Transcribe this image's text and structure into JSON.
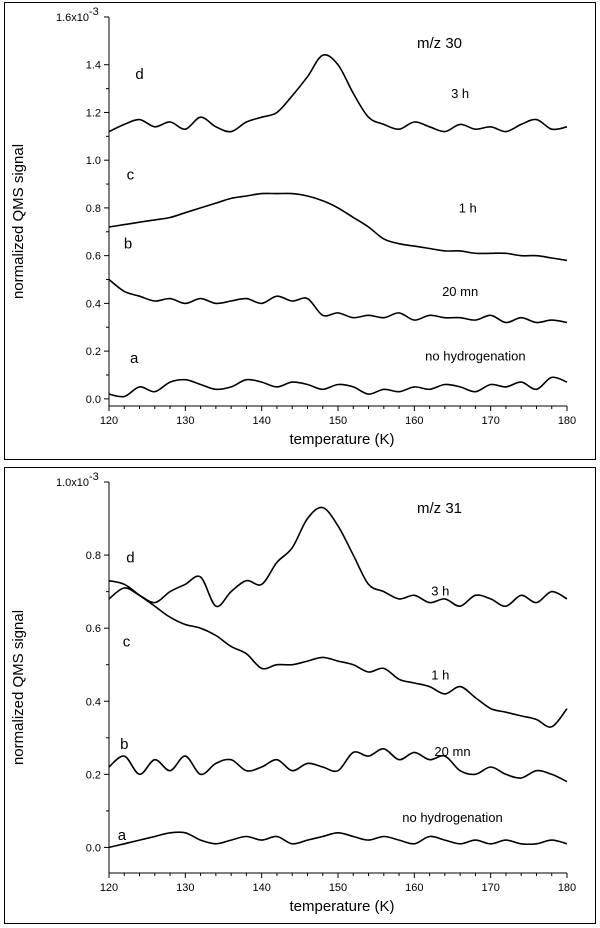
{
  "charts": [
    {
      "id": "top",
      "mz_label": "m/z 30",
      "ylabel": "normalized QMS signal",
      "xlabel": "temperature (K)",
      "exponent_label": "1.6x10",
      "exponent_power": "-3",
      "yticks": [
        "0.0",
        "0.2",
        "0.4",
        "0.6",
        "0.8",
        "1.0",
        "1.2",
        "1.4"
      ],
      "xticks": [
        "120",
        "130",
        "140",
        "150",
        "160",
        "170",
        "180"
      ],
      "curve_labels": [
        {
          "letter": "d",
          "time": "3 h"
        },
        {
          "letter": "c",
          "time": "1 h"
        },
        {
          "letter": "b",
          "time": "20 mn"
        },
        {
          "letter": "a",
          "time": "no hydrogenation"
        }
      ]
    },
    {
      "id": "bottom",
      "mz_label": "m/z 31",
      "ylabel": "normalized QMS signal",
      "xlabel": "temperature (K)",
      "exponent_label": "1.0x10",
      "exponent_power": "-3",
      "yticks": [
        "0.0",
        "0.2",
        "0.4",
        "0.6",
        "0.8"
      ],
      "xticks": [
        "120",
        "130",
        "140",
        "150",
        "160",
        "170",
        "180"
      ],
      "curve_labels": [
        {
          "letter": "d",
          "time": "3 h"
        },
        {
          "letter": "c",
          "time": "1 h"
        },
        {
          "letter": "b",
          "time": "20 mn"
        },
        {
          "letter": "a",
          "time": "no hydrogenation"
        }
      ]
    }
  ],
  "chart_data": [
    {
      "type": "line",
      "title": "m/z 30",
      "xlabel": "temperature (K)",
      "ylabel": "normalized QMS signal",
      "xlim": [
        120,
        180
      ],
      "ylim": [
        -0.03,
        1.6
      ],
      "y_unit_multiplier": "x10^-3",
      "grid": false,
      "series": [
        {
          "name": "a — no hydrogenation",
          "x": [
            120,
            122,
            124,
            126,
            128,
            130,
            132,
            134,
            136,
            138,
            140,
            142,
            144,
            146,
            148,
            150,
            152,
            154,
            156,
            158,
            160,
            162,
            164,
            166,
            168,
            170,
            172,
            174,
            176,
            178,
            180
          ],
          "y": [
            0.02,
            0.01,
            0.05,
            0.03,
            0.07,
            0.08,
            0.06,
            0.04,
            0.05,
            0.08,
            0.07,
            0.05,
            0.07,
            0.06,
            0.04,
            0.06,
            0.05,
            0.02,
            0.04,
            0.03,
            0.05,
            0.04,
            0.06,
            0.05,
            0.03,
            0.06,
            0.05,
            0.07,
            0.04,
            0.09,
            0.07
          ]
        },
        {
          "name": "b — 20 mn",
          "x": [
            120,
            122,
            124,
            126,
            128,
            130,
            132,
            134,
            136,
            138,
            140,
            142,
            144,
            146,
            148,
            150,
            152,
            154,
            156,
            158,
            160,
            162,
            164,
            166,
            168,
            170,
            172,
            174,
            176,
            178,
            180
          ],
          "y": [
            0.5,
            0.45,
            0.43,
            0.41,
            0.42,
            0.4,
            0.42,
            0.4,
            0.41,
            0.42,
            0.4,
            0.43,
            0.41,
            0.42,
            0.35,
            0.36,
            0.34,
            0.35,
            0.34,
            0.36,
            0.33,
            0.35,
            0.34,
            0.34,
            0.33,
            0.35,
            0.32,
            0.34,
            0.32,
            0.33,
            0.32
          ]
        },
        {
          "name": "c — 1 h",
          "x": [
            120,
            122,
            124,
            126,
            128,
            130,
            132,
            134,
            136,
            138,
            140,
            142,
            144,
            146,
            148,
            150,
            152,
            154,
            156,
            158,
            160,
            162,
            164,
            166,
            168,
            170,
            172,
            174,
            176,
            178,
            180
          ],
          "y": [
            0.72,
            0.73,
            0.74,
            0.75,
            0.76,
            0.78,
            0.8,
            0.82,
            0.84,
            0.85,
            0.86,
            0.86,
            0.86,
            0.85,
            0.83,
            0.8,
            0.76,
            0.72,
            0.67,
            0.65,
            0.64,
            0.63,
            0.62,
            0.62,
            0.61,
            0.61,
            0.61,
            0.6,
            0.6,
            0.59,
            0.58
          ]
        },
        {
          "name": "d — 3 h",
          "x": [
            120,
            122,
            124,
            126,
            128,
            130,
            132,
            134,
            136,
            138,
            140,
            142,
            144,
            146,
            148,
            150,
            152,
            154,
            156,
            158,
            160,
            162,
            164,
            166,
            168,
            170,
            172,
            174,
            176,
            178,
            180
          ],
          "y": [
            1.12,
            1.15,
            1.17,
            1.14,
            1.16,
            1.13,
            1.18,
            1.14,
            1.12,
            1.16,
            1.18,
            1.2,
            1.27,
            1.35,
            1.44,
            1.4,
            1.28,
            1.18,
            1.15,
            1.13,
            1.16,
            1.14,
            1.12,
            1.15,
            1.13,
            1.14,
            1.12,
            1.15,
            1.17,
            1.13,
            1.14
          ]
        }
      ]
    },
    {
      "type": "line",
      "title": "m/z 31",
      "xlabel": "temperature (K)",
      "ylabel": "normalized QMS signal",
      "xlim": [
        120,
        180
      ],
      "ylim": [
        -0.07,
        1.0
      ],
      "y_unit_multiplier": "x10^-3",
      "grid": false,
      "series": [
        {
          "name": "a — no hydrogenation",
          "x": [
            120,
            122,
            124,
            126,
            128,
            130,
            132,
            134,
            136,
            138,
            140,
            142,
            144,
            146,
            148,
            150,
            152,
            154,
            156,
            158,
            160,
            162,
            164,
            166,
            168,
            170,
            172,
            174,
            176,
            178,
            180
          ],
          "y": [
            0.0,
            0.01,
            0.02,
            0.03,
            0.04,
            0.04,
            0.02,
            0.01,
            0.02,
            0.03,
            0.02,
            0.03,
            0.01,
            0.02,
            0.03,
            0.04,
            0.03,
            0.02,
            0.03,
            0.02,
            0.01,
            0.03,
            0.02,
            0.01,
            0.02,
            0.01,
            0.02,
            0.01,
            0.01,
            0.02,
            0.01
          ]
        },
        {
          "name": "b — 20 mn",
          "x": [
            120,
            122,
            124,
            126,
            128,
            130,
            132,
            134,
            136,
            138,
            140,
            142,
            144,
            146,
            148,
            150,
            152,
            154,
            156,
            158,
            160,
            162,
            164,
            166,
            168,
            170,
            172,
            174,
            176,
            178,
            180
          ],
          "y": [
            0.22,
            0.25,
            0.2,
            0.24,
            0.21,
            0.25,
            0.2,
            0.23,
            0.24,
            0.21,
            0.22,
            0.24,
            0.21,
            0.23,
            0.22,
            0.21,
            0.26,
            0.25,
            0.27,
            0.24,
            0.26,
            0.24,
            0.25,
            0.21,
            0.2,
            0.22,
            0.2,
            0.19,
            0.21,
            0.2,
            0.18
          ]
        },
        {
          "name": "c — 1 h",
          "x": [
            120,
            122,
            124,
            126,
            128,
            130,
            132,
            134,
            136,
            138,
            140,
            142,
            144,
            146,
            148,
            150,
            152,
            154,
            156,
            158,
            160,
            162,
            164,
            166,
            168,
            170,
            172,
            174,
            176,
            178,
            180
          ],
          "y": [
            0.73,
            0.72,
            0.69,
            0.66,
            0.63,
            0.61,
            0.6,
            0.58,
            0.55,
            0.53,
            0.49,
            0.5,
            0.5,
            0.51,
            0.52,
            0.51,
            0.5,
            0.48,
            0.49,
            0.46,
            0.45,
            0.44,
            0.42,
            0.44,
            0.41,
            0.38,
            0.37,
            0.36,
            0.35,
            0.33,
            0.38
          ]
        },
        {
          "name": "d — 3 h",
          "x": [
            120,
            122,
            124,
            126,
            128,
            130,
            132,
            134,
            136,
            138,
            140,
            142,
            144,
            146,
            148,
            150,
            152,
            154,
            156,
            158,
            160,
            162,
            164,
            166,
            168,
            170,
            172,
            174,
            176,
            178,
            180
          ],
          "y": [
            0.68,
            0.71,
            0.69,
            0.67,
            0.7,
            0.72,
            0.74,
            0.66,
            0.7,
            0.73,
            0.72,
            0.78,
            0.82,
            0.9,
            0.93,
            0.88,
            0.8,
            0.72,
            0.7,
            0.68,
            0.69,
            0.67,
            0.68,
            0.66,
            0.69,
            0.68,
            0.66,
            0.69,
            0.67,
            0.7,
            0.68
          ]
        }
      ]
    }
  ]
}
